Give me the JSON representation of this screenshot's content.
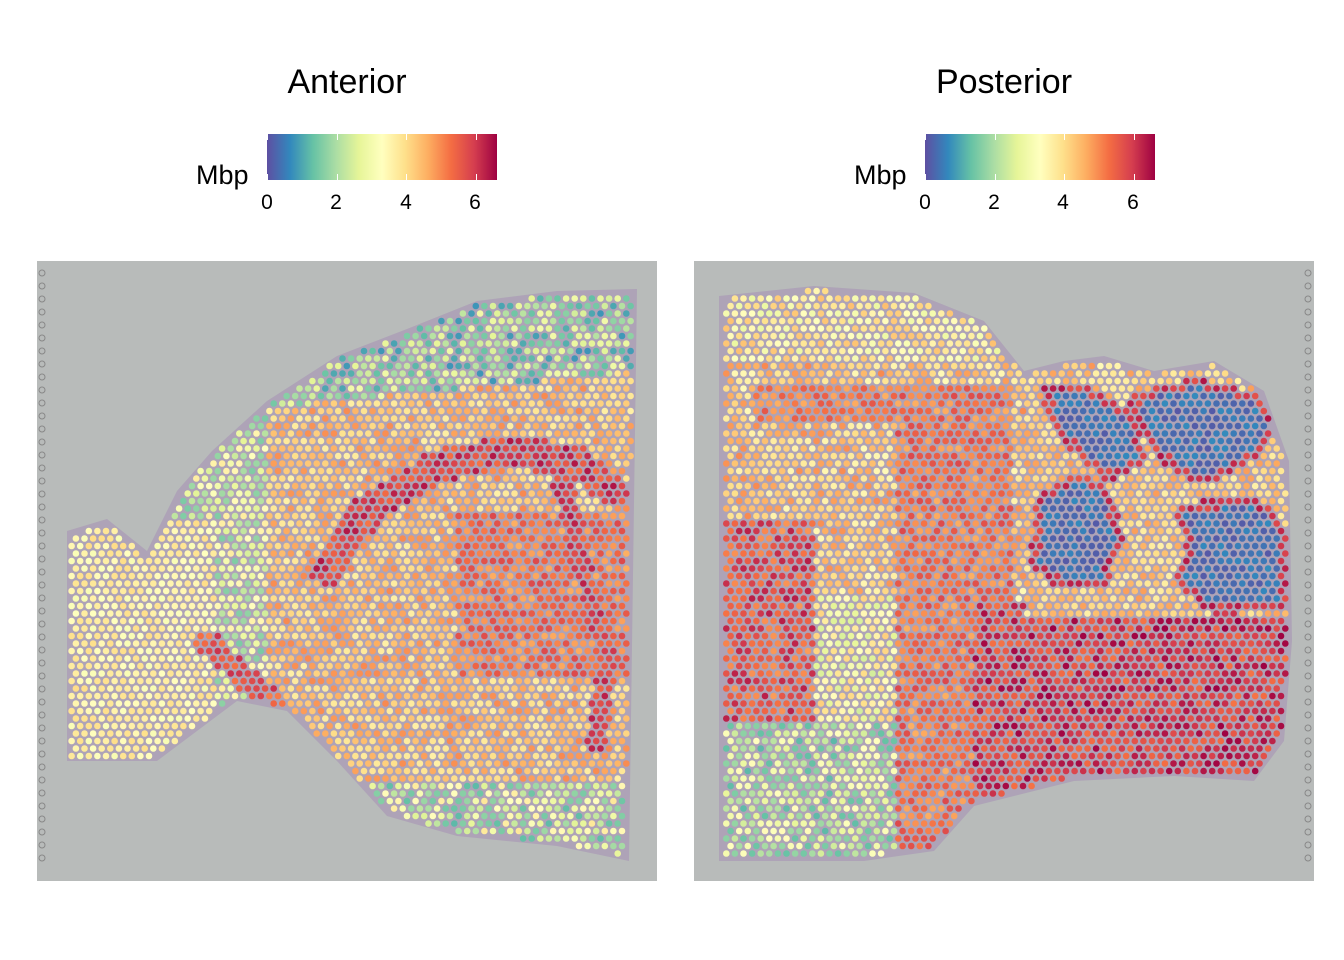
{
  "panels": [
    {
      "title": "Anterior",
      "legend": {
        "title": "Mbp",
        "ticks": [
          "0",
          "2",
          "4",
          "6"
        ],
        "min": 0,
        "max": 6.6
      }
    },
    {
      "title": "Posterior",
      "legend": {
        "title": "Mbp",
        "ticks": [
          "0",
          "2",
          "4",
          "6"
        ],
        "min": 0,
        "max": 6.6
      }
    }
  ],
  "colormap": [
    "#5e4fa2",
    "#3288bd",
    "#66c2a5",
    "#abdda4",
    "#e6f598",
    "#ffffbf",
    "#fee08b",
    "#fdae61",
    "#f46d43",
    "#d53e4f",
    "#9e0142"
  ],
  "background_color": "#b8bbba",
  "tissue_color": "#a58fb4",
  "chart_data": [
    {
      "type": "heatmap",
      "title": "Anterior",
      "legend_title": "Mbp",
      "value_range": [
        0,
        6.6
      ],
      "legend_ticks": [
        0,
        2,
        4,
        6
      ],
      "legend_position": "top"
    },
    {
      "type": "heatmap",
      "title": "Posterior",
      "legend_title": "Mbp",
      "value_range": [
        0,
        6.6
      ],
      "legend_ticks": [
        0,
        2,
        4,
        6
      ],
      "legend_position": "top"
    }
  ]
}
